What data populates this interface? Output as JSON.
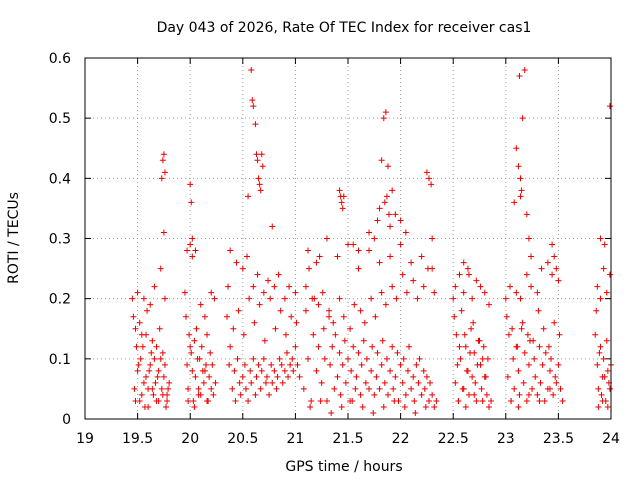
{
  "chart_data": {
    "type": "scatter",
    "title": "Day 043 of 2026, Rate Of TEC Index for receiver cas1",
    "xlabel": "GPS time / hours",
    "ylabel": "ROTI / TECUs",
    "xlim": [
      19,
      24
    ],
    "ylim": [
      0,
      0.6
    ],
    "xticks": [
      "19",
      "19.5",
      "20",
      "20.5",
      "21",
      "21.5",
      "22",
      "22.5",
      "23",
      "23.5",
      "24"
    ],
    "yticks": [
      "0",
      "0.1",
      "0.2",
      "0.3",
      "0.4",
      "0.5",
      "0.6"
    ],
    "grid": true,
    "marker": "plus",
    "color": "#ee0000",
    "series": [
      {
        "x": [
          19.45,
          19.47,
          19.48,
          19.5,
          19.52,
          19.53,
          19.55,
          19.57,
          19.58,
          19.6,
          19.62,
          19.63,
          19.65,
          19.67,
          19.68,
          19.7,
          19.72,
          19.73,
          19.75,
          19.77,
          19.78,
          19.8,
          19.46,
          19.49,
          19.51,
          19.54,
          19.56,
          19.59,
          19.61,
          19.64,
          19.66,
          19.69,
          19.71,
          19.74,
          19.76,
          19.79,
          19.5,
          19.56,
          19.62,
          19.66,
          19.72,
          19.76,
          19.48,
          19.54,
          19.6,
          19.64,
          19.7,
          19.74,
          19.78,
          19.52,
          19.58,
          19.68,
          19.73,
          19.74,
          19.75,
          19.76,
          19.75,
          19.95,
          19.97,
          19.98,
          20.0,
          20.02,
          20.03,
          20.05,
          20.07,
          20.08,
          20.1,
          20.12,
          20.13,
          20.15,
          20.17,
          20.18,
          20.2,
          20.22,
          20.24,
          19.96,
          19.99,
          20.01,
          20.04,
          20.06,
          20.09,
          20.11,
          20.14,
          20.16,
          20.19,
          20.21,
          19.97,
          20.0,
          20.02,
          20.05,
          20.1,
          20.14,
          20.2,
          20.23,
          19.98,
          20.04,
          20.08,
          20.16,
          20.0,
          20.01,
          20.02,
          20.35,
          20.37,
          20.38,
          20.4,
          20.42,
          20.43,
          20.45,
          20.47,
          20.48,
          20.5,
          20.52,
          20.53,
          20.55,
          20.57,
          20.58,
          20.6,
          20.62,
          20.63,
          20.65,
          20.67,
          20.68,
          20.7,
          20.72,
          20.73,
          20.75,
          20.77,
          20.78,
          20.8,
          20.82,
          20.83,
          20.85,
          20.87,
          20.88,
          20.9,
          20.92,
          20.93,
          20.95,
          20.97,
          20.98,
          21.0,
          21.02,
          21.04,
          20.36,
          20.41,
          20.46,
          20.51,
          20.56,
          20.61,
          20.66,
          20.71,
          20.76,
          20.81,
          20.86,
          20.91,
          20.96,
          21.01,
          20.38,
          20.44,
          20.5,
          20.54,
          20.6,
          20.64,
          20.7,
          20.74,
          20.8,
          20.84,
          20.9,
          20.94,
          21.0,
          20.58,
          20.59,
          20.6,
          20.62,
          20.63,
          20.64,
          20.65,
          20.66,
          20.67,
          20.68,
          20.69,
          20.55,
          20.78,
          21.08,
          21.1,
          21.12,
          21.13,
          21.15,
          21.17,
          21.18,
          21.2,
          21.22,
          21.23,
          21.25,
          21.27,
          21.28,
          21.3,
          21.32,
          21.33,
          21.35,
          21.37,
          21.38,
          21.4,
          21.42,
          21.43,
          21.45,
          21.47,
          21.48,
          21.5,
          21.52,
          21.53,
          21.55,
          21.57,
          21.58,
          21.6,
          21.62,
          21.63,
          21.65,
          21.67,
          21.68,
          21.7,
          21.72,
          21.73,
          21.75,
          21.77,
          21.78,
          21.8,
          21.82,
          21.83,
          21.85,
          21.87,
          21.88,
          21.9,
          21.92,
          21.93,
          21.95,
          21.97,
          21.98,
          22.0,
          22.02,
          22.03,
          22.05,
          22.07,
          22.08,
          22.1,
          22.12,
          22.13,
          22.15,
          22.17,
          22.18,
          22.2,
          22.22,
          22.23,
          22.25,
          22.27,
          22.28,
          22.3,
          22.32,
          22.34,
          21.1,
          21.16,
          21.22,
          21.26,
          21.32,
          21.36,
          21.42,
          21.46,
          21.52,
          21.56,
          21.62,
          21.66,
          21.72,
          21.76,
          21.82,
          21.86,
          21.92,
          21.96,
          22.02,
          22.06,
          22.12,
          22.16,
          22.22,
          22.26,
          22.32,
          21.12,
          21.2,
          21.3,
          21.4,
          21.5,
          21.6,
          21.7,
          21.8,
          21.9,
          22.0,
          22.1,
          22.2,
          22.3,
          21.14,
          21.24,
          21.34,
          21.44,
          21.54,
          21.64,
          21.74,
          21.84,
          21.94,
          22.04,
          22.14,
          22.24,
          21.42,
          21.43,
          21.44,
          21.45,
          21.46,
          21.78,
          21.8,
          21.82,
          21.84,
          21.86,
          21.88,
          21.9,
          21.92,
          21.95,
          22.0,
          22.05,
          22.25,
          22.27,
          22.29,
          22.3,
          21.85,
          21.87,
          21.89,
          21.7,
          21.75,
          21.55,
          21.6,
          22.5,
          22.52,
          22.53,
          22.55,
          22.57,
          22.58,
          22.6,
          22.62,
          22.63,
          22.65,
          22.67,
          22.68,
          22.7,
          22.72,
          22.73,
          22.75,
          22.77,
          22.78,
          22.8,
          22.82,
          22.84,
          22.86,
          22.51,
          22.54,
          22.56,
          22.59,
          22.61,
          22.64,
          22.66,
          22.69,
          22.71,
          22.74,
          22.76,
          22.79,
          22.81,
          22.83,
          22.52,
          22.56,
          22.6,
          22.64,
          22.68,
          22.72,
          22.76,
          22.8,
          22.84,
          22.55,
          22.62,
          22.7,
          22.78,
          22.6,
          22.65,
          23.0,
          23.02,
          23.03,
          23.05,
          23.07,
          23.08,
          23.1,
          23.12,
          23.13,
          23.15,
          23.17,
          23.18,
          23.2,
          23.22,
          23.23,
          23.25,
          23.27,
          23.28,
          23.3,
          23.32,
          23.33,
          23.35,
          23.37,
          23.38,
          23.4,
          23.42,
          23.43,
          23.45,
          23.47,
          23.48,
          23.5,
          23.52,
          23.54,
          23.01,
          23.06,
          23.11,
          23.16,
          23.21,
          23.26,
          23.31,
          23.36,
          23.41,
          23.46,
          23.51,
          23.04,
          23.1,
          23.14,
          23.2,
          23.24,
          23.3,
          23.34,
          23.4,
          23.44,
          23.5,
          23.05,
          23.12,
          23.22,
          23.32,
          23.42,
          23.08,
          23.1,
          23.12,
          23.14,
          23.15,
          23.16,
          23.18,
          23.2,
          23.22,
          23.24,
          23.13,
          23.14,
          23.44,
          23.46,
          23.48,
          23.85,
          23.87,
          23.88,
          23.9,
          23.92,
          23.93,
          23.95,
          23.97,
          23.98,
          24.0,
          23.86,
          23.89,
          23.91,
          23.94,
          23.96,
          23.99,
          23.87,
          23.9,
          23.93,
          23.96,
          23.99,
          23.88,
          23.92,
          23.97,
          23.9,
          23.94,
          23.99
        ],
        "y": [
          0.2,
          0.05,
          0.15,
          0.08,
          0.03,
          0.1,
          0.12,
          0.02,
          0.07,
          0.05,
          0.09,
          0.11,
          0.04,
          0.06,
          0.03,
          0.08,
          0.1,
          0.05,
          0.07,
          0.02,
          0.04,
          0.06,
          0.17,
          0.12,
          0.09,
          0.14,
          0.06,
          0.18,
          0.08,
          0.13,
          0.1,
          0.07,
          0.15,
          0.11,
          0.09,
          0.05,
          0.21,
          0.2,
          0.19,
          0.22,
          0.25,
          0.2,
          0.03,
          0.04,
          0.02,
          0.05,
          0.03,
          0.04,
          0.03,
          0.16,
          0.14,
          0.12,
          0.4,
          0.43,
          0.44,
          0.41,
          0.31,
          0.21,
          0.09,
          0.05,
          0.12,
          0.08,
          0.03,
          0.07,
          0.1,
          0.05,
          0.04,
          0.08,
          0.06,
          0.09,
          0.03,
          0.07,
          0.05,
          0.04,
          0.06,
          0.17,
          0.14,
          0.11,
          0.13,
          0.15,
          0.1,
          0.12,
          0.08,
          0.14,
          0.11,
          0.09,
          0.28,
          0.29,
          0.27,
          0.28,
          0.19,
          0.17,
          0.21,
          0.2,
          0.03,
          0.02,
          0.04,
          0.03,
          0.39,
          0.36,
          0.3,
          0.17,
          0.09,
          0.12,
          0.05,
          0.08,
          0.03,
          0.1,
          0.06,
          0.04,
          0.07,
          0.09,
          0.05,
          0.03,
          0.08,
          0.06,
          0.1,
          0.04,
          0.07,
          0.09,
          0.05,
          0.08,
          0.1,
          0.06,
          0.07,
          0.04,
          0.09,
          0.06,
          0.08,
          0.05,
          0.07,
          0.1,
          0.09,
          0.06,
          0.08,
          0.11,
          0.07,
          0.09,
          0.1,
          0.08,
          0.12,
          0.09,
          0.07,
          0.22,
          0.15,
          0.18,
          0.14,
          0.2,
          0.16,
          0.19,
          0.13,
          0.2,
          0.15,
          0.18,
          0.14,
          0.17,
          0.16,
          0.28,
          0.26,
          0.25,
          0.27,
          0.22,
          0.24,
          0.21,
          0.23,
          0.22,
          0.24,
          0.2,
          0.22,
          0.21,
          0.58,
          0.53,
          0.52,
          0.49,
          0.44,
          0.43,
          0.4,
          0.39,
          0.38,
          0.44,
          0.42,
          0.37,
          0.32,
          0.05,
          0.18,
          0.1,
          0.25,
          0.03,
          0.14,
          0.2,
          0.08,
          0.12,
          0.27,
          0.06,
          0.15,
          0.1,
          0.03,
          0.17,
          0.09,
          0.12,
          0.05,
          0.14,
          0.07,
          0.11,
          0.04,
          0.09,
          0.13,
          0.06,
          0.1,
          0.03,
          0.08,
          0.12,
          0.05,
          0.07,
          0.11,
          0.04,
          0.09,
          0.13,
          0.06,
          0.1,
          0.05,
          0.08,
          0.12,
          0.04,
          0.07,
          0.11,
          0.05,
          0.09,
          0.13,
          0.06,
          0.1,
          0.04,
          0.08,
          0.12,
          0.05,
          0.07,
          0.11,
          0.03,
          0.09,
          0.06,
          0.1,
          0.04,
          0.08,
          0.12,
          0.05,
          0.07,
          0.03,
          0.09,
          0.06,
          0.1,
          0.04,
          0.08,
          0.05,
          0.07,
          0.03,
          0.06,
          0.04,
          0.02,
          0.03,
          0.22,
          0.2,
          0.19,
          0.21,
          0.18,
          0.16,
          0.2,
          0.17,
          0.15,
          0.19,
          0.18,
          0.16,
          0.2,
          0.17,
          0.21,
          0.19,
          0.22,
          0.2,
          0.24,
          0.21,
          0.23,
          0.2,
          0.22,
          0.25,
          0.21,
          0.28,
          0.26,
          0.3,
          0.27,
          0.29,
          0.25,
          0.28,
          0.26,
          0.27,
          0.29,
          0.26,
          0.27,
          0.25,
          0.02,
          0.03,
          0.01,
          0.02,
          0.03,
          0.02,
          0.01,
          0.02,
          0.03,
          0.02,
          0.01,
          0.02,
          0.38,
          0.37,
          0.36,
          0.35,
          0.37,
          0.33,
          0.35,
          0.43,
          0.5,
          0.51,
          0.42,
          0.32,
          0.38,
          0.34,
          0.33,
          0.31,
          0.41,
          0.4,
          0.39,
          0.3,
          0.36,
          0.37,
          0.34,
          0.31,
          0.3,
          0.29,
          0.28,
          0.2,
          0.06,
          0.14,
          0.03,
          0.1,
          0.18,
          0.05,
          0.12,
          0.08,
          0.04,
          0.15,
          0.07,
          0.11,
          0.03,
          0.09,
          0.13,
          0.05,
          0.1,
          0.07,
          0.04,
          0.02,
          0.03,
          0.17,
          0.09,
          0.12,
          0.05,
          0.14,
          0.08,
          0.11,
          0.16,
          0.06,
          0.13,
          0.09,
          0.12,
          0.07,
          0.1,
          0.22,
          0.24,
          0.21,
          0.25,
          0.2,
          0.23,
          0.22,
          0.21,
          0.19,
          0.03,
          0.02,
          0.04,
          0.03,
          0.26,
          0.24,
          0.2,
          0.07,
          0.14,
          0.03,
          0.1,
          0.05,
          0.12,
          0.08,
          0.04,
          0.15,
          0.06,
          0.11,
          0.03,
          0.09,
          0.13,
          0.05,
          0.1,
          0.07,
          0.04,
          0.12,
          0.06,
          0.09,
          0.03,
          0.11,
          0.05,
          0.08,
          0.1,
          0.04,
          0.07,
          0.06,
          0.09,
          0.05,
          0.03,
          0.17,
          0.15,
          0.12,
          0.16,
          0.14,
          0.13,
          0.18,
          0.15,
          0.12,
          0.16,
          0.14,
          0.22,
          0.21,
          0.2,
          0.24,
          0.22,
          0.21,
          0.25,
          0.26,
          0.24,
          0.23,
          0.03,
          0.02,
          0.04,
          0.03,
          0.05,
          0.36,
          0.45,
          0.42,
          0.4,
          0.38,
          0.5,
          0.58,
          0.34,
          0.3,
          0.27,
          0.57,
          0.37,
          0.29,
          0.27,
          0.25,
          0.14,
          0.09,
          0.05,
          0.12,
          0.07,
          0.1,
          0.03,
          0.08,
          0.06,
          0.09,
          0.18,
          0.11,
          0.04,
          0.07,
          0.13,
          0.05,
          0.22,
          0.2,
          0.25,
          0.21,
          0.24,
          0.02,
          0.03,
          0.02,
          0.3,
          0.29,
          0.52
        ]
      }
    ]
  }
}
